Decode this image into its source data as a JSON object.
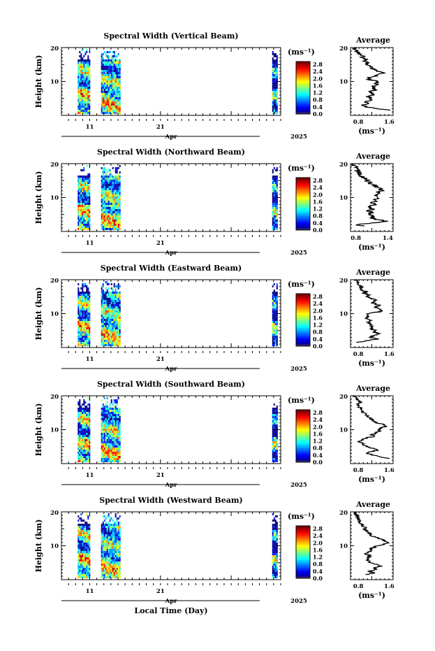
{
  "figure": {
    "xlabel": "Local Time (Day)",
    "month_label": "Apr",
    "year_label": "2025",
    "x_tick_labels": [
      "11",
      "21"
    ],
    "y_tick_labels": [
      "10",
      "20"
    ]
  },
  "chart_data": [
    {
      "type": "heatmap",
      "title": "Spectral Width (Vertical Beam)",
      "ylabel": "Height (km)",
      "cbar_label": "(ms⁻¹)",
      "cbar_ticks": [
        "0.0",
        "0.4",
        "0.8",
        "1.2",
        "1.6",
        "2.0",
        "2.4",
        "2.8"
      ],
      "avg_title": "Average",
      "avg_xlabel": "(ms⁻¹)",
      "avg_xticks": [
        "0.8",
        "1.6"
      ],
      "avg_xlim": [
        0.6,
        1.7
      ],
      "avg_profile": [
        [
          1.5,
          1.6
        ],
        [
          2,
          1.3
        ],
        [
          2.5,
          1.0
        ],
        [
          3,
          0.9
        ],
        [
          3.5,
          1.05
        ],
        [
          4,
          1.0
        ],
        [
          4.5,
          1.1
        ],
        [
          5,
          1.15
        ],
        [
          5.5,
          1.05
        ],
        [
          6,
          1.15
        ],
        [
          6.5,
          1.2
        ],
        [
          7,
          1.1
        ],
        [
          7.5,
          1.25
        ],
        [
          8,
          1.2
        ],
        [
          8.5,
          1.15
        ],
        [
          9,
          1.3
        ],
        [
          9.5,
          1.25
        ],
        [
          10,
          1.35
        ],
        [
          10.5,
          1.1
        ],
        [
          11,
          1.05
        ],
        [
          11.5,
          1.25
        ],
        [
          12,
          1.3
        ],
        [
          12.5,
          1.45
        ],
        [
          13,
          1.3
        ],
        [
          13.5,
          1.2
        ],
        [
          14,
          1.1
        ],
        [
          14.5,
          1.15
        ],
        [
          15,
          1.0
        ],
        [
          15.5,
          1.05
        ],
        [
          16,
          0.95
        ],
        [
          16.5,
          1.0
        ],
        [
          17,
          0.9
        ],
        [
          17.5,
          0.95
        ],
        [
          18,
          0.85
        ],
        [
          18.5,
          0.8
        ],
        [
          19,
          0.75
        ],
        [
          19.5,
          0.7
        ],
        [
          20,
          0.7
        ]
      ]
    },
    {
      "type": "heatmap",
      "title": "Spectral Width (Northward Beam)",
      "ylabel": "Height (km)",
      "cbar_label": "(ms⁻¹)",
      "cbar_ticks": [
        "0.0",
        "0.4",
        "0.8",
        "1.2",
        "1.6",
        "2.0",
        "2.4",
        "2.8"
      ],
      "avg_title": "Average",
      "avg_xlabel": "(ms⁻¹)",
      "avg_xticks": [
        "0.8",
        "1.4"
      ],
      "avg_xlim": [
        0.7,
        1.5
      ],
      "avg_profile": [
        [
          1.5,
          1.0
        ],
        [
          2,
          0.8
        ],
        [
          2.5,
          1.1
        ],
        [
          3,
          1.35
        ],
        [
          3.5,
          1.2
        ],
        [
          4,
          1.1
        ],
        [
          4.5,
          1.15
        ],
        [
          5,
          1.05
        ],
        [
          5.5,
          1.1
        ],
        [
          6,
          1.05
        ],
        [
          6.5,
          1.1
        ],
        [
          7,
          1.05
        ],
        [
          7.5,
          1.1
        ],
        [
          8,
          1.15
        ],
        [
          8.5,
          1.1
        ],
        [
          9,
          1.2
        ],
        [
          9.5,
          1.15
        ],
        [
          10,
          1.2
        ],
        [
          10.5,
          1.15
        ],
        [
          11,
          1.25
        ],
        [
          11.5,
          1.2
        ],
        [
          12,
          1.3
        ],
        [
          12.5,
          1.25
        ],
        [
          13,
          1.2
        ],
        [
          13.5,
          1.15
        ],
        [
          14,
          1.1
        ],
        [
          14.5,
          1.05
        ],
        [
          15,
          1.0
        ],
        [
          15.5,
          0.98
        ],
        [
          16,
          0.95
        ],
        [
          16.5,
          0.9
        ],
        [
          17,
          0.88
        ],
        [
          17.5,
          0.85
        ],
        [
          18,
          0.82
        ],
        [
          18.5,
          0.8
        ],
        [
          19,
          0.78
        ],
        [
          19.5,
          0.75
        ],
        [
          20,
          0.72
        ]
      ]
    },
    {
      "type": "heatmap",
      "title": "Spectral Width (Eastward Beam)",
      "ylabel": "Height (km)",
      "cbar_label": "(ms⁻¹)",
      "cbar_ticks": [
        "0.0",
        "0.4",
        "0.8",
        "1.2",
        "1.6",
        "2.0",
        "2.4",
        "2.8"
      ],
      "avg_title": "Average",
      "avg_xlabel": "(ms⁻¹)",
      "avg_xticks": [
        "0.8",
        "1.6"
      ],
      "avg_xlim": [
        0.6,
        1.7
      ],
      "avg_profile": [
        [
          1.5,
          0.8
        ],
        [
          2,
          1.0
        ],
        [
          2.5,
          1.3
        ],
        [
          3,
          1.1
        ],
        [
          3.5,
          1.2
        ],
        [
          4,
          1.35
        ],
        [
          4.5,
          1.2
        ],
        [
          5,
          1.25
        ],
        [
          5.5,
          1.15
        ],
        [
          6,
          1.2
        ],
        [
          6.5,
          1.1
        ],
        [
          7,
          1.15
        ],
        [
          7.5,
          1.05
        ],
        [
          8,
          1.1
        ],
        [
          8.5,
          1.0
        ],
        [
          9,
          1.05
        ],
        [
          9.5,
          1.0
        ],
        [
          10,
          1.1
        ],
        [
          10.5,
          1.3
        ],
        [
          11,
          1.45
        ],
        [
          11.5,
          1.3
        ],
        [
          12,
          1.25
        ],
        [
          12.5,
          1.35
        ],
        [
          13,
          1.2
        ],
        [
          13.5,
          1.15
        ],
        [
          14,
          1.25
        ],
        [
          14.5,
          1.1
        ],
        [
          15,
          1.05
        ],
        [
          15.5,
          1.1
        ],
        [
          16,
          0.95
        ],
        [
          16.5,
          1.0
        ],
        [
          17,
          0.9
        ],
        [
          17.5,
          0.85
        ],
        [
          18,
          0.9
        ],
        [
          18.5,
          0.8
        ],
        [
          19,
          0.75
        ],
        [
          19.5,
          0.8
        ],
        [
          20,
          0.7
        ]
      ]
    },
    {
      "type": "heatmap",
      "title": "Spectral Width (Southward Beam)",
      "ylabel": "Height (km)",
      "cbar_label": "(ms⁻¹)",
      "cbar_ticks": [
        "0.0",
        "0.4",
        "0.8",
        "1.2",
        "1.6",
        "2.0",
        "2.4",
        "2.8"
      ],
      "avg_title": "Average",
      "avg_xlabel": "(ms⁻¹)",
      "avg_xticks": [
        "0.8",
        "1.6"
      ],
      "avg_xlim": [
        0.6,
        1.7
      ],
      "avg_profile": [
        [
          1.5,
          1.6
        ],
        [
          2,
          1.4
        ],
        [
          2.5,
          1.2
        ],
        [
          3,
          1.05
        ],
        [
          3.5,
          1.1
        ],
        [
          4,
          1.35
        ],
        [
          4.5,
          1.2
        ],
        [
          5,
          1.0
        ],
        [
          5.5,
          0.95
        ],
        [
          6,
          0.9
        ],
        [
          6.5,
          0.85
        ],
        [
          7,
          0.9
        ],
        [
          7.5,
          1.0
        ],
        [
          8,
          1.2
        ],
        [
          8.5,
          1.15
        ],
        [
          9,
          1.25
        ],
        [
          9.5,
          1.35
        ],
        [
          10,
          1.3
        ],
        [
          10.5,
          1.4
        ],
        [
          11,
          1.55
        ],
        [
          11.5,
          1.45
        ],
        [
          12,
          1.3
        ],
        [
          12.5,
          1.2
        ],
        [
          13,
          1.15
        ],
        [
          13.5,
          1.1
        ],
        [
          14,
          1.05
        ],
        [
          14.5,
          1.0
        ],
        [
          15,
          0.95
        ],
        [
          15.5,
          0.92
        ],
        [
          16,
          0.9
        ],
        [
          16.5,
          0.85
        ],
        [
          17,
          0.82
        ],
        [
          17.5,
          0.8
        ],
        [
          18,
          0.85
        ],
        [
          18.5,
          0.8
        ],
        [
          19,
          0.75
        ],
        [
          19.5,
          0.72
        ],
        [
          20,
          0.7
        ]
      ]
    },
    {
      "type": "heatmap",
      "title": "Spectral Width (Westward Beam)",
      "ylabel": "Height (km)",
      "cbar_label": "(ms⁻¹)",
      "cbar_ticks": [
        "0.0",
        "0.4",
        "0.8",
        "1.2",
        "1.6",
        "2.0",
        "2.4",
        "2.8"
      ],
      "avg_title": "Average",
      "avg_xlabel": "(ms⁻¹)",
      "avg_xticks": [
        "0.8",
        "1.6"
      ],
      "avg_xlim": [
        0.6,
        1.7
      ],
      "avg_profile": [
        [
          1.5,
          1.0
        ],
        [
          2,
          1.2
        ],
        [
          2.5,
          1.1
        ],
        [
          3,
          1.3
        ],
        [
          3.5,
          1.2
        ],
        [
          4,
          1.4
        ],
        [
          4.5,
          1.3
        ],
        [
          5,
          1.15
        ],
        [
          5.5,
          1.05
        ],
        [
          6,
          1.0
        ],
        [
          6.5,
          1.05
        ],
        [
          7,
          1.1
        ],
        [
          7.5,
          1.0
        ],
        [
          8,
          1.05
        ],
        [
          8.5,
          1.1
        ],
        [
          9,
          1.15
        ],
        [
          9.5,
          1.2
        ],
        [
          10,
          1.3
        ],
        [
          10.5,
          1.45
        ],
        [
          11,
          1.6
        ],
        [
          11.5,
          1.45
        ],
        [
          12,
          1.35
        ],
        [
          12.5,
          1.25
        ],
        [
          13,
          1.15
        ],
        [
          13.5,
          1.1
        ],
        [
          14,
          1.05
        ],
        [
          14.5,
          1.0
        ],
        [
          15,
          0.95
        ],
        [
          15.5,
          0.98
        ],
        [
          16,
          0.9
        ],
        [
          16.5,
          0.88
        ],
        [
          17,
          0.85
        ],
        [
          17.5,
          0.82
        ],
        [
          18,
          0.8
        ],
        [
          18.5,
          0.78
        ],
        [
          19,
          0.75
        ],
        [
          19.5,
          0.72
        ],
        [
          20,
          0.7
        ]
      ]
    }
  ]
}
